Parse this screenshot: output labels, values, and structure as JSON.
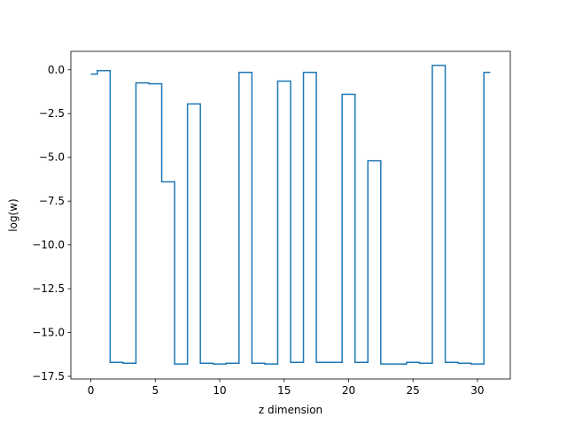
{
  "chart_data": {
    "type": "line",
    "drawstyle": "steps-mid",
    "title": "",
    "xlabel": "z dimension",
    "ylabel": "log(w)",
    "xlim": [
      -1.55,
      32.55
    ],
    "ylim": [
      -17.65,
      1.05
    ],
    "grid": false,
    "line_color": "#1f77b4",
    "xticks": [
      0,
      5,
      10,
      15,
      20,
      25,
      30
    ],
    "xtick_labels": [
      "0",
      "5",
      "10",
      "15",
      "20",
      "25",
      "30"
    ],
    "yticks": [
      0.0,
      -2.5,
      -5.0,
      -7.5,
      -10.0,
      -12.5,
      -15.0,
      -17.5
    ],
    "ytick_labels": [
      "0.0",
      "−2.5",
      "−5.0",
      "−7.5",
      "−10.0",
      "−12.5",
      "−15.0",
      "−17.5"
    ],
    "x": [
      0,
      1,
      2,
      3,
      4,
      5,
      6,
      7,
      8,
      9,
      10,
      11,
      12,
      13,
      14,
      15,
      16,
      17,
      18,
      19,
      20,
      21,
      22,
      23,
      24,
      25,
      26,
      27,
      28,
      29,
      30,
      31
    ],
    "values": [
      -0.25,
      -0.05,
      -16.7,
      -16.75,
      -0.75,
      -0.8,
      -6.4,
      -16.8,
      -1.95,
      -16.75,
      -16.8,
      -16.75,
      -0.15,
      -16.75,
      -16.8,
      -0.65,
      -16.7,
      -0.15,
      -16.7,
      -16.7,
      -1.4,
      -16.7,
      -5.2,
      -16.8,
      -16.8,
      -16.7,
      -16.75,
      0.25,
      -16.7,
      -16.75,
      -16.8,
      -0.15
    ]
  }
}
